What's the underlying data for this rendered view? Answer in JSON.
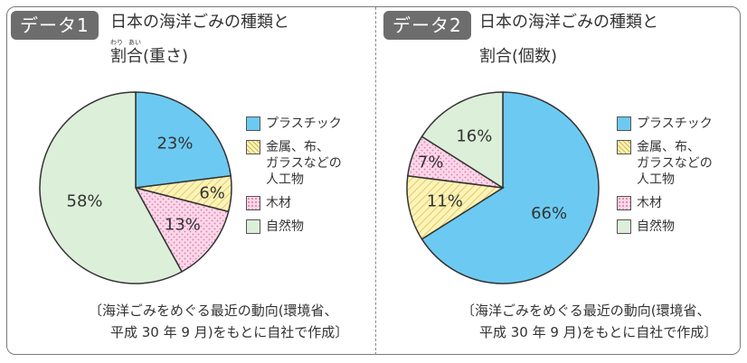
{
  "panels": [
    {
      "tag": "データ1",
      "title_line1": "日本の海洋ごみの種類と",
      "title_line2": "割合(重さ)",
      "ruby_wari": "わり",
      "ruby_ai": "あい",
      "source_line1": "〔海洋ごみをめぐる最近の動向(環境省、",
      "source_line2": "平成 30 年 9 月)をもとに自社で作成〕"
    },
    {
      "tag": "データ2",
      "title_line1": "日本の海洋ごみの種類と",
      "title_line2": "割合(個数)",
      "source_line1": "〔海洋ごみをめぐる最近の動向(環境省、",
      "source_line2": "平成 30 年 9 月)をもとに自社で作成〕"
    }
  ],
  "legend": [
    {
      "label": "プラスチック",
      "pattern": "plastic"
    },
    {
      "label": "金属、布、\nガラスなどの\n人工物",
      "pattern": "artificial"
    },
    {
      "label": "木材",
      "pattern": "wood"
    },
    {
      "label": "自然物",
      "pattern": "natural"
    }
  ],
  "colors": {
    "plastic": "#6ccaf2",
    "artificial": "#fdf3b5",
    "artificial_hatch": "#cdb85a",
    "wood": "#fbd7e9",
    "wood_dot": "#e07aa6",
    "natural": "#dcefd9",
    "outline": "#333333",
    "tag": "#6d6d6d"
  },
  "chart_data": [
    {
      "type": "pie",
      "title": "日本の海洋ごみの種類と割合(重さ)",
      "categories": [
        "プラスチック",
        "金属、布、ガラスなどの人工物",
        "木材",
        "自然物"
      ],
      "values": [
        23,
        6,
        13,
        58
      ],
      "labels": [
        "23%",
        "6%",
        "13%",
        "58%"
      ],
      "unit": "%"
    },
    {
      "type": "pie",
      "title": "日本の海洋ごみの種類と割合(個数)",
      "categories": [
        "プラスチック",
        "金属、布、ガラスなどの人工物",
        "木材",
        "自然物"
      ],
      "values": [
        66,
        11,
        7,
        16
      ],
      "labels": [
        "66%",
        "11%",
        "7%",
        "16%"
      ],
      "unit": "%"
    }
  ]
}
